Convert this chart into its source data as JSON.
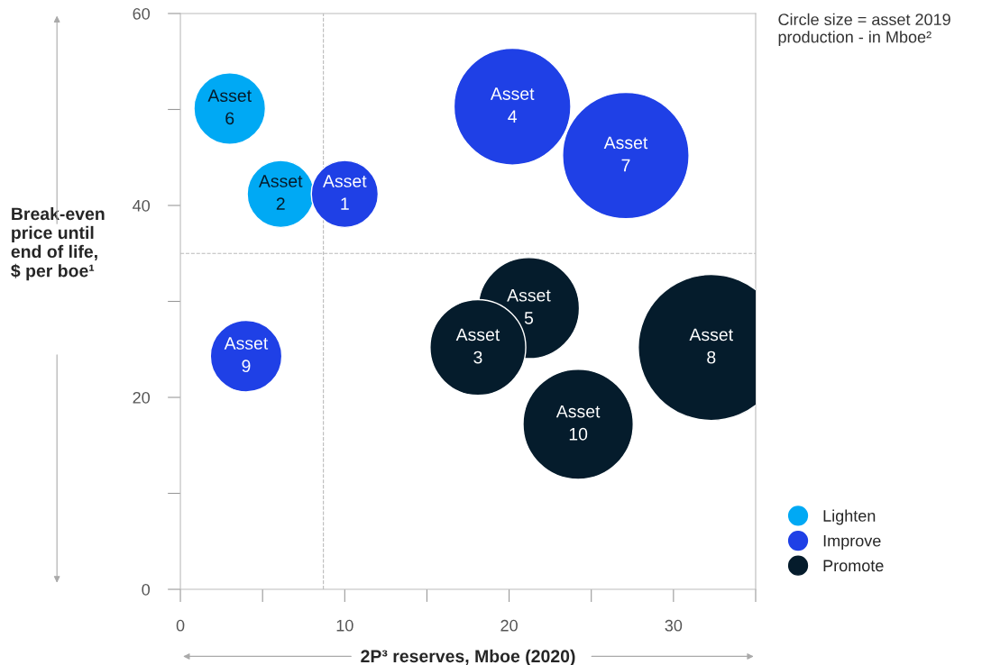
{
  "chart_data": {
    "type": "bubble",
    "xlabel": "2P³ reserves, Mboe (2020)",
    "ylabel": "Break-even\nprice until\nend of life,\n$ per boe¹",
    "xlim": [
      0,
      35
    ],
    "xticks": [
      0,
      {
        "value": 5,
        "label": null
      },
      10,
      {
        "value": 15,
        "label": null
      },
      20,
      {
        "value": 25,
        "label": null
      },
      30,
      {
        "value": 35,
        "label": null
      }
    ],
    "ylim": [
      0,
      60
    ],
    "yticks": [
      0,
      {
        "value": 10,
        "label": null
      },
      20,
      {
        "value": 30,
        "label": null
      },
      40,
      {
        "value": 50,
        "label": null
      },
      60
    ],
    "grid": false,
    "legend": "right",
    "marker": "circle",
    "series": [
      {
        "name": "Lighten",
        "color": "#00a9f4",
        "x": [
          3.0,
          6.1
        ],
        "values": [
          50.1,
          41.2
        ],
        "sizes": [
          0.24,
          0.21
        ]
      },
      {
        "name": "Improve",
        "color": "#1f40e6",
        "x": [
          10.0,
          20.2,
          27.1,
          4.0
        ],
        "values": [
          41.2,
          50.3,
          45.2,
          24.3
        ],
        "sizes": [
          0.21,
          0.64,
          0.75,
          0.24
        ]
      },
      {
        "name": "Promote",
        "color": "#051c2c",
        "x": [
          21.2,
          18.1,
          32.3,
          24.2
        ],
        "values": [
          29.3,
          25.2,
          25.2,
          17.2
        ],
        "sizes": [
          0.48,
          0.43,
          1.0,
          0.57
        ]
      }
    ],
    "ref_lines": [
      {
        "axis": "x",
        "value": 8.7,
        "line_style": "dashed",
        "color": "#bbbbbb"
      },
      {
        "axis": "y",
        "value": 35,
        "line_style": "dashed",
        "color": "#bbbbbb"
      }
    ],
    "annotations": [
      "Circle size = asset 2019\nproduction - in Mboe²",
      {
        "text": "Asset\n6",
        "x": 3.0,
        "y": 50.1
      },
      {
        "text": "Asset\n2",
        "x": 6.1,
        "y": 41.2
      },
      {
        "text": "Asset\n1",
        "x": 10.0,
        "y": 41.2
      },
      {
        "text": "Asset\n4",
        "x": 20.2,
        "y": 50.3
      },
      {
        "text": "Asset\n7",
        "x": 27.1,
        "y": 45.2
      },
      {
        "text": "Asset\n9",
        "x": 4.0,
        "y": 24.3
      },
      {
        "text": "Asset\n5",
        "x": 21.2,
        "y": 29.3
      },
      {
        "text": "Asset\n3",
        "x": 18.1,
        "y": 25.2
      },
      {
        "text": "Asset\n8",
        "x": 32.3,
        "y": 25.2
      },
      {
        "text": "Asset\n10",
        "x": 24.2,
        "y": 17.2
      }
    ]
  }
}
